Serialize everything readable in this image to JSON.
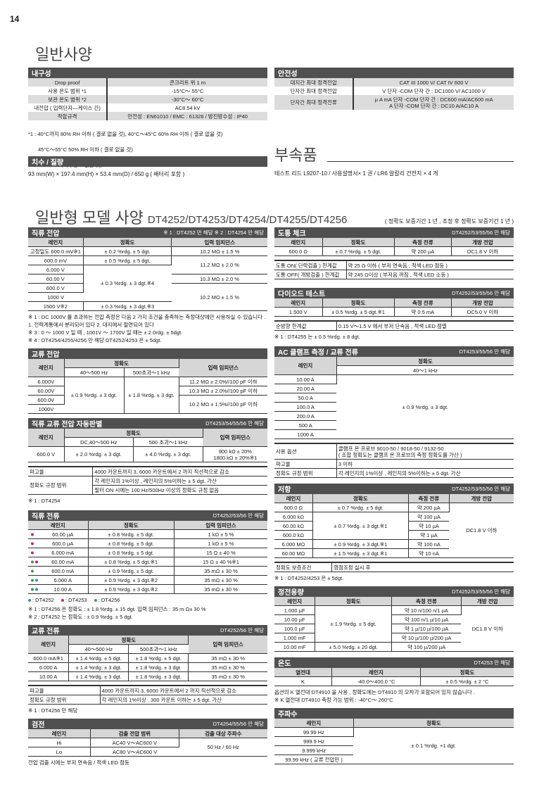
{
  "page_number": "14",
  "general": {
    "title": "일반사양"
  },
  "durability": {
    "title": "내구성",
    "rows": [
      [
        "Drop proof",
        "콘크리트 위 1 m"
      ],
      [
        "사용 온도 범위 *1",
        "-15°C～ 55°C"
      ],
      [
        "보관 온도 범위 *2",
        "-30°C～ 60°C"
      ],
      [
        "내전압 ( 입력단자—케이스 간)",
        "AC8.54 kV"
      ],
      [
        "적합규격",
        "안전성 : EN61010 / EMC : 61326 / 방진방수성 : IP40"
      ]
    ],
    "notes": [
      "*1 : 40°C까지 80% RH 이하 ( 결로 없을 것), 40°C～45°C 60% RH 이하 ( 결로 없을 것)",
      "45°C～55°C 50% RH 이하 ( 결로 없을 것)",
      "*2 : 80% RH 이하 ( 결로 없을 것)"
    ]
  },
  "dimensions": {
    "title": "치수 / 질량",
    "text": "93 mm(W) × 197.4 mm(H) × 53.4 mm(D) / 650 g ( 배터리 포함 )"
  },
  "safety": {
    "title": "안전성",
    "rows": [
      [
        "대지간 최대 정격전압",
        "CAT III 1000 V/ CAT IV 600 V"
      ],
      [
        "단자간 최대 정격전압",
        "V 단자 -COM 단자 간 : DC1000 V/ AC1000 V"
      ],
      [
        "단자간 최대 정격전류",
        "μ A mA 단자 -COM 단자 간 : DC600 mA/AC600 mA\nA 단자 -COM 단자 간 : DC10 A/AC10 A"
      ]
    ]
  },
  "accessories": {
    "title": "부속품",
    "text": "테스트 리드 L9207-10 / 사용설명서× 1 권 / LR6 알칼리 건전지 × 4 개"
  },
  "model": {
    "title": "일반형 모델 사양",
    "models": "DT4252/DT4253/DT4254/DT4255/DT4256",
    "warranty": "( 정확도 보증기간 1 년 , 조정 후 정확도 보증기간 1 년 )"
  },
  "colors": {
    "DT4252": "#2a8fd0",
    "DT4253": "#c2267e",
    "DT4256": "#3aa040",
    "header_bar": "#505050"
  },
  "sections": [
    {
      "id": "dc-voltage",
      "title": "직류 전압",
      "note": "※ 1 : DT4252 만 해당   ※ 2 : DT4254 만 해당",
      "rows": [
        [
          {
            "t": "레인지",
            "h": 1
          },
          {
            "t": "정확도",
            "h": 1
          },
          {
            "t": "입력 임피던스",
            "h": 1
          }
        ],
        [
          "고정밀도 600.0 mV※1",
          "± 0.2 %rdg. ± 5 dgt.",
          "10.2 MΩ ± 1.5 %"
        ],
        [
          "600.0 mV",
          "± 0.5 %rdg. ± 5 dgt.",
          {
            "t": "11.2 MΩ ± 2.0 %",
            "rs": 2
          }
        ],
        [
          "6.000 V",
          {
            "t": "± 0.3 %rdg. ± 3 dgt.※4",
            "rs": 4
          }
        ],
        [
          "60.00 V",
          "10.3 MΩ ± 2.0 %"
        ],
        [
          "600.0 V",
          {
            "t": "10.2 MΩ ± 1.5 %",
            "rs": 3
          }
        ],
        [
          "1000 V"
        ],
        [
          "1500 V※2",
          "± 0.3 %rdg. ± 3 dgt.※3"
        ]
      ],
      "notes": [
        "※ 1 : DC 1000V 를 초과하는 전압 측정은 다음 2 가지 조건을 충족하는 측정대상에만 사용하실 수 있습니다 .",
        "1. 전력계통에서 분리되어 있다  2. 대지에서 절연되어 있다",
        "※ 3 : 0 ～ 1000 V 일 때 , 1001V ～ 1700V 일 때는 ± 2.0rdg. ± 5dgt.",
        "※ 4 : DT4254/4255/4256 만 해당 DT4252/4253 은 ± 5dgt."
      ]
    },
    {
      "id": "ac-voltage",
      "title": "교류 전압",
      "note": "",
      "rows": [
        [
          {
            "t": "레인지",
            "h": 1,
            "rs": 2
          },
          {
            "t": "정확도",
            "h": 1,
            "cs": 2
          },
          {
            "t": "입력 임피던스",
            "h": 1,
            "rs": 2
          }
        ],
        [
          {
            "t": "40～500 Hz",
            "h2": 1
          },
          {
            "t": "500초과～1 kHz",
            "h2": 1
          }
        ],
        [
          "6.000V",
          {
            "t": "± 0.9 %rdg.  ± 3 dgt.",
            "rs": 4
          },
          {
            "t": "± 1.8 %rdg.  ± 3 dgt.",
            "rs": 4
          },
          "11.2 MΩ ± 2.0%//100 pF 이하"
        ],
        [
          "60.00V",
          "10.3 MΩ ± 2.0%//100 pF 이하"
        ],
        [
          "600.0V",
          {
            "t": "10.2 MΩ ± 1.5%//100 pF 이하",
            "rs": 2
          }
        ],
        [
          "1000V"
        ]
      ]
    },
    {
      "id": "auto",
      "title": "직류 교류 전압 자동판별",
      "note": "DT4253/54/55/56 만 해당",
      "rows": [
        [
          {
            "t": "레인지",
            "h": 1,
            "rs": 2
          },
          {
            "t": "정확도",
            "h": 1,
            "cs": 2
          },
          {
            "t": "입력 임피던스",
            "h": 1,
            "rs": 2
          }
        ],
        [
          {
            "t": "DC,40～500 Hz",
            "h2": 1
          },
          {
            "t": "500 초과～1 kHz",
            "h2": 1
          }
        ],
        [
          "600.0 V",
          "± 2.0 %rdg. ± 3 dgt.",
          "± 4.0 %rdg. ± 3 dgt.",
          "900 kΩ ± 20%\n1800 kΩ ± 20%※1"
        ]
      ],
      "extra": [
        [
          "파고율",
          "4000 카운트까지 3, 6000 카운트에서  2 까지 직선적으로 감소"
        ],
        [
          {
            "t": "정확도 규정 범위",
            "rs": 2
          },
          "각 레인지의 1%이상 , 레인지의 5%이하는 ± 5 dgt. 가산"
        ],
        [
          "필터 ON 시에는 100 Hz/500Hz 이상의 정확도 규정 없음"
        ]
      ],
      "notes": [
        "※ 1 : DT4254"
      ]
    },
    {
      "id": "dc-current",
      "title": "직류 전류",
      "note": "DT4252/53/56 만 해당",
      "rows": [
        [
          {
            "t": "레인지",
            "h": 1
          },
          {
            "t": "정확도",
            "h": 1
          },
          {
            "t": "입력 임피던스",
            "h": 1
          }
        ],
        [
          {
            "t": "60.00 µA",
            "dots": [
              "DT4253"
            ]
          },
          "± 0.8 %rdg. ± 5 dgt.",
          "1 kΩ ± 5 %"
        ],
        [
          {
            "t": "600.0 µA",
            "dots": [
              "DT4253"
            ]
          },
          "± 0.8 %rdg. ± 5 dgt.",
          "1 kΩ ± 5 %"
        ],
        [
          {
            "t": "6.000 mA",
            "dots": [
              "DT4253"
            ]
          },
          "± 0.8 %rdg. ± 5 dgt.",
          "15 Ω ± 40 %"
        ],
        [
          {
            "t": "60.00 mA",
            "dots": [
              "DT4256",
              "DT4253"
            ]
          },
          "± 0.8 %rdg. ± 5 dgt.※1",
          "15 Ω ± 40 %※1"
        ],
        [
          {
            "t": "600.0 mA",
            "dots": [
              "DT4256"
            ]
          },
          "± 0.9 %rdg. ± 5 dgt.",
          "35 mΩ ± 30 %"
        ],
        [
          {
            "t": "6.000 A",
            "dots": [
              "DT4256",
              "DT4252"
            ]
          },
          "± 0.9 %rdg. ± 3 dgt.※2",
          "35 mΩ ± 30 %"
        ],
        [
          {
            "t": "10.00 A",
            "dots": [
              "DT4256",
              "DT4252"
            ]
          },
          "± 0.9 %rdg. ± 3 dgt.※2",
          "35 mΩ ± 30 %"
        ]
      ],
      "legend": [
        {
          "model": "DT4252",
          "label": ": DT4252"
        },
        {
          "model": "DT4253",
          "label": ": DT4253"
        },
        {
          "model": "DT4256",
          "label": ": DT4256"
        }
      ],
      "notes": [
        "※ 1 : DT4256 은 정확도 : ± 1.8 %rdg. ± 15 dgt.   입력 임피던스 : 35 m Ω± 30 %",
        "※ 2 : DT4252 는 정확도 : ± 0.9 %rdg. ± 5 dgt."
      ]
    },
    {
      "id": "ac-current",
      "title": "교류 전류",
      "note": "DT4252/56 만 해당",
      "rows": [
        [
          {
            "t": "레인지",
            "h": 1,
            "rs": 2
          },
          {
            "t": "정확도",
            "h": 1,
            "cs": 2
          },
          {
            "t": "입력 임피던스",
            "h": 1,
            "rs": 2
          }
        ],
        [
          {
            "t": "40～500 Hz",
            "h2": 1
          },
          {
            "t": "500초과～1 kHz",
            "h2": 1
          }
        ],
        [
          "600.0 mA※1",
          "± 1.4 %rdg. ± 5 dgt.",
          "± 1.8 %rdg. ± 5 dgt.",
          "35 mΩ ± 30 %"
        ],
        [
          "6.000 A",
          "± 1.4 %rdg. ± 3 dgt.",
          "± 1.8 %rdg. ± 3 dgt.",
          "35 mΩ ± 30 %"
        ],
        [
          "10.00 A",
          "± 1.4 %rdg. ± 3 dgt.",
          "± 1.8 %rdg. ± 3 dgt.",
          "35 mΩ ± 30 %"
        ]
      ],
      "extra": [
        [
          "파고율",
          "4000 카운트까지 3, 6000 카운트에서  2 까지 직선적으로 감소"
        ],
        [
          "정확도 규정 범위",
          "각 레인지의 1%이상 , 300 카운트 이하는 ± 5 dgt. 가산"
        ]
      ],
      "notes": [
        "※ 1 : DT4256 만 해당"
      ]
    },
    {
      "id": "detect",
      "title": "검전",
      "note": "DT4254/55/56 만 해당",
      "rows": [
        [
          {
            "t": "레인지",
            "h": 1
          },
          {
            "t": "검출 전압 범위",
            "h": 1
          },
          {
            "t": "검출 대상 주파수",
            "h": 1
          }
        ],
        [
          "Hi",
          "AC40 V～AC600 V",
          {
            "t": "50 Hz / 60 Hz",
            "rs": 2
          }
        ],
        [
          "Lo",
          "AC80 V～AC600 V"
        ]
      ],
      "notes": [
        "전압 검출 시에는 부저 연속음 / 적색 LED 점등"
      ]
    },
    {
      "id": "continuity",
      "title": "도통 체크",
      "note": "DT4252/53/55/56 만 해당",
      "rows": [
        [
          {
            "t": "레인지",
            "h": 1
          },
          {
            "t": "정확도",
            "h": 1
          },
          {
            "t": "측정 전류",
            "h": 1
          },
          {
            "t": "개방 전압",
            "h": 1
          }
        ],
        [
          "600.0 Ω",
          "± 0.7 %rdg. ± 5 dgt.",
          "약 200 µA",
          "DC1.8 V 이하"
        ]
      ],
      "extra": [
        [
          "도통 ON( 단락검출 ) 한계값",
          "약 25 Ω 이하 ( 부저 연속음 , 적색 LED 점등 )"
        ],
        [
          "도통 OFF( 개방검출 ) 한계값",
          "약 245 Ω이상 ( 부저음 꺼짐 , 적색 LED 소등 )"
        ]
      ]
    },
    {
      "id": "diode",
      "title": "다이오드 테스트",
      "note": "DT4252/53/55/56 만 해당",
      "rows": [
        [
          {
            "t": "레인지",
            "h": 1
          },
          {
            "t": "정확도",
            "h": 1
          },
          {
            "t": "측정 전류",
            "h": 1
          },
          {
            "t": "개방 전압",
            "h": 1
          }
        ],
        [
          "1.500 V",
          "± 0.5 %rdg. ± 5 dgt.※1",
          "약 0.5 mA",
          "DC5.0 V 이하"
        ]
      ],
      "extra": [
        [
          "순방향 한계값",
          "0.15 V～1.5 V 에서 부저 단속음 , 적색 LED 점멸"
        ]
      ],
      "notes": [
        "※ 1 : DT4255 는 ± 0.5 %rdg. ± 8 dgt."
      ]
    },
    {
      "id": "clamp",
      "title": "AC 클램프 측정 / 교류 전류",
      "note": "DT4253/55/56 만 해당",
      "rows": [
        [
          {
            "t": "레인지",
            "h": 1,
            "rs": 2
          },
          {
            "t": "정확도",
            "h": 1
          }
        ],
        [
          {
            "t": "40～1 kHz",
            "h2": 1
          }
        ],
        [
          "10.00 A",
          {
            "t": "± 0.9 %rdg. ± 3 dgt.",
            "rs": 7
          }
        ],
        [
          "20.00 A"
        ],
        [
          "50.0 A"
        ],
        [
          "100.0 A"
        ],
        [
          "200.0 A"
        ],
        [
          "500 A"
        ],
        [
          "1000 A"
        ]
      ],
      "extra": [
        [
          "사용 옵션",
          "클램프 온 프로브 9010-50 / 9018-50 / 9132-50\n( 조합 정확도는 클램프 온 프로브의 측정 정확도를 가산 )"
        ],
        [
          "파고율",
          "3 이하"
        ],
        [
          "정확도 규정 범위",
          "각 레인지의 1%이상 , 레인지의 5%이하는 ± 5 dgt. 가산"
        ]
      ]
    },
    {
      "id": "resistance",
      "title": "저항",
      "note": "DT4252/53/55/56 만 해당",
      "rows": [
        [
          {
            "t": "레인지",
            "h": 1
          },
          {
            "t": "정확도",
            "h": 1
          },
          {
            "t": "측정 전류",
            "h": 1
          },
          {
            "t": "개방 전압",
            "h": 1
          }
        ],
        [
          "600.0 Ω",
          "± 0.7 %rdg. ± 5 dgt.",
          "약 200 µA",
          {
            "t": "DC1.8 V 이하",
            "rs": 6
          }
        ],
        [
          "6.000 kΩ",
          {
            "t": "± 0.7 %rdg. ± 3 dgt.※1",
            "rs": 3
          },
          "약 100 µA"
        ],
        [
          "60.00 kΩ",
          "약 10 µA"
        ],
        [
          "600.0 kΩ",
          "약 1 µA"
        ],
        [
          "6.000 MΩ",
          "± 0.9 %rdg. ± 3 dgt.※1",
          "약 100 nA"
        ],
        [
          "60.00 MΩ",
          "± 1.5 %rdg. ± 3 dgt.※1",
          "약 10 nA"
        ]
      ],
      "extra": [
        [
          "정확도 보증조건",
          "영점조정 실시 후"
        ]
      ],
      "notes": [
        "※ 1 : DT4252/4253 은 ± 5dgt."
      ]
    },
    {
      "id": "capacitance",
      "title": "정전용량",
      "note": "DT4252/53/55/56 만 해당",
      "rows": [
        [
          {
            "t": "레인지",
            "h": 1
          },
          {
            "t": "정확도",
            "h": 1
          },
          {
            "t": "측정 전류",
            "h": 1
          },
          {
            "t": "개방 전압",
            "h": 1
          }
        ],
        [
          "1.000 µF",
          {
            "t": "± 1.9 %rdg. ± 5 dgt.",
            "rs": 4
          },
          "약 10 n/100 n/1 µA",
          {
            "t": "DC1.8 V 이하",
            "rs": 5
          }
        ],
        [
          "10.00 µF",
          "약 100 n/1 µ/10 µA"
        ],
        [
          "100.0 µF",
          "약 1 µ/10 µ/100 µA"
        ],
        [
          "1.000 mF",
          "약 10 µ/100 µ/200 µA"
        ],
        [
          "10.00 mF",
          "± 5.0 %rdg. ± 20 dgt.",
          "약 100 µ/200 µA"
        ]
      ]
    },
    {
      "id": "temperature",
      "title": "온도",
      "note": "DT4253 만 해당",
      "rows": [
        [
          {
            "t": "열전대",
            "h": 1
          },
          {
            "t": "레인지",
            "h": 1
          },
          {
            "t": "정확도",
            "h": 1
          }
        ],
        [
          "K",
          "-40.0～400.0 °C",
          "± 0.5 %rdg. ± 2 °C"
        ]
      ],
      "notes": [
        "옵션의 K 열전대 DT4910 을 사용 , 정확도에는 DT4910 의 오차가 포함되어 있지 않습니다 .",
        "※ K 열전대 DT4910 측정 가능 범위 : -40°C～ 260°C"
      ]
    },
    {
      "id": "frequency",
      "title": "주파수",
      "note": "",
      "rows": [
        [
          {
            "t": "레인지",
            "h": 1
          },
          {
            "t": "정확도",
            "h": 1
          }
        ],
        [
          "99.99 Hz",
          {
            "t": "± 0.1 %rdg. +1 dgt.",
            "rs": 4
          }
        ],
        [
          "999.9 Hz"
        ],
        [
          "9.999 kHz"
        ],
        [
          "99.99 kHz ( 교류 전압만 )"
        ]
      ]
    }
  ]
}
